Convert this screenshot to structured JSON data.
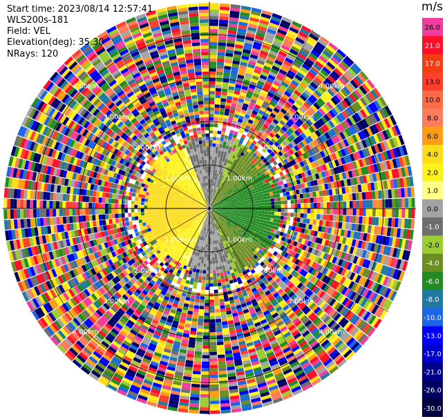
{
  "header": {
    "start_time": "Start time: 2023/08/14 12:57:41",
    "instrument": "WLS200s-181",
    "field": "Field: VEL",
    "elevation": "Elevation(deg): 35.30",
    "nrays": "NRays: 120"
  },
  "colorbar": {
    "unit": "m/s",
    "bins": [
      {
        "label": "26.0",
        "color": "#f23c9d"
      },
      {
        "label": "21.0",
        "color": "#ff0f2a"
      },
      {
        "label": "17.0",
        "color": "#f33d12"
      },
      {
        "label": "13.0",
        "color": "#ff3f2c"
      },
      {
        "label": "10.0",
        "color": "#fb6b45"
      },
      {
        "label": "8.0",
        "color": "#fe7c5c"
      },
      {
        "label": "6.0",
        "color": "#fe9d13"
      },
      {
        "label": "4.0",
        "color": "#ffdc19"
      },
      {
        "label": "2.0",
        "color": "#fff21c"
      },
      {
        "label": "1.0",
        "color": "#ffff88"
      },
      {
        "label": "0.0",
        "color": "#a3a3a3"
      },
      {
        "label": "-1.0",
        "color": "#6e6e6e"
      },
      {
        "label": "-2.0",
        "color": "#9acd32"
      },
      {
        "label": "-4.0",
        "color": "#6b8e23"
      },
      {
        "label": "-6.0",
        "color": "#228b22"
      },
      {
        "label": "-8.0",
        "color": "#1e7aa0"
      },
      {
        "label": "-10.0",
        "color": "#1c64e8"
      },
      {
        "label": "-13.0",
        "color": "#0000ff"
      },
      {
        "label": "-17.0",
        "color": "#0000c8"
      },
      {
        "label": "-21.0",
        "color": "#00008b"
      },
      {
        "label": "-26.0",
        "color": "#000060"
      },
      {
        "label": "-30.0",
        "color": "#000040"
      }
    ]
  },
  "ring_labels": [
    "1.00km",
    "2.00km",
    "3.00km",
    "4.00km"
  ],
  "chart_data": {
    "type": "heatmap",
    "projection": "polar (PPI)",
    "field": "VEL",
    "units": "m/s",
    "nrays": 120,
    "elevation_deg": 35.3,
    "range_rings_km": [
      1,
      2,
      3,
      4
    ],
    "max_range_km": 4.75,
    "color_levels": [
      -30,
      -26,
      -21,
      -17,
      -13,
      -10,
      -8,
      -6,
      -4,
      -2,
      -1,
      0,
      1,
      2,
      4,
      6,
      8,
      10,
      13,
      17,
      21,
      26
    ],
    "near_field_pattern": {
      "west": "positive 2 to 6 m/s (yellow/orange)",
      "east": "negative -2 to -6 m/s (green)",
      "north_south": "near 0 m/s (grey)"
    },
    "far_field": "noisy, full color range"
  }
}
